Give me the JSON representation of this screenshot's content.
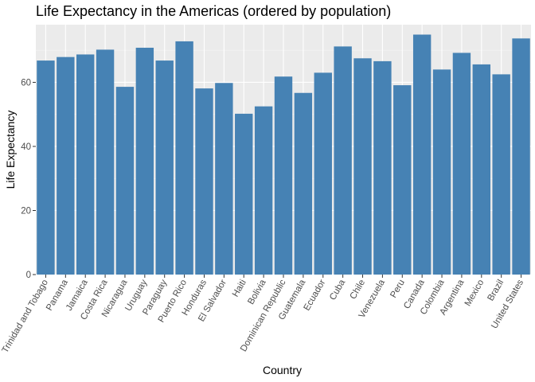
{
  "chart_data": {
    "type": "bar",
    "title": "Life Expectancy in the Americas (ordered by population)",
    "xlabel": "Country",
    "ylabel": "Life Expectancy",
    "categories": [
      "Trinidad and Tobago",
      "Panama",
      "Jamaica",
      "Costa Rica",
      "Nicaragua",
      "Uruguay",
      "Paraguay",
      "Puerto Rico",
      "Honduras",
      "El Salvador",
      "Haiti",
      "Bolivia",
      "Dominican Republic",
      "Guatemala",
      "Ecuador",
      "Cuba",
      "Chile",
      "Venezuela",
      "Peru",
      "Canada",
      "Colombia",
      "Argentina",
      "Mexico",
      "Brazil",
      "United States"
    ],
    "values": [
      66.8,
      67.9,
      68.7,
      70.2,
      58.6,
      70.8,
      66.8,
      72.8,
      58.1,
      59.8,
      50.2,
      52.5,
      61.8,
      56.7,
      63.0,
      71.2,
      67.5,
      66.6,
      59.1,
      74.9,
      64.0,
      69.2,
      65.6,
      62.5,
      73.7
    ],
    "ylim": [
      0,
      78
    ],
    "yticks": [
      0,
      20,
      40,
      60
    ],
    "bar_color": "#4682b4",
    "panel_background": "#ebebeb",
    "grid": true,
    "legend": "none"
  }
}
